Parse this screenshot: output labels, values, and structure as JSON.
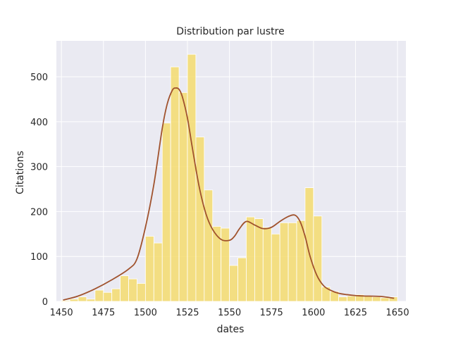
{
  "chart_data": {
    "type": "histogram",
    "title": "Distribution par lustre",
    "xlabel": "dates",
    "ylabel": "Citations",
    "xlim": [
      1447,
      1655
    ],
    "ylim": [
      0,
      580
    ],
    "x_ticks": [
      1450,
      1475,
      1500,
      1525,
      1550,
      1575,
      1600,
      1625,
      1650
    ],
    "y_ticks": [
      0,
      100,
      200,
      300,
      400,
      500
    ],
    "grid": true,
    "background": "#eaeaf2",
    "grid_color": "#ffffff",
    "bar_color": "#f5dc6e",
    "kde_color": "#a0522d",
    "bins": [
      {
        "start": 1450,
        "end": 1455,
        "value": 2
      },
      {
        "start": 1455,
        "end": 1460,
        "value": 5
      },
      {
        "start": 1460,
        "end": 1465,
        "value": 10
      },
      {
        "start": 1465,
        "end": 1470,
        "value": 5
      },
      {
        "start": 1470,
        "end": 1475,
        "value": 25
      },
      {
        "start": 1475,
        "end": 1480,
        "value": 20
      },
      {
        "start": 1480,
        "end": 1485,
        "value": 28
      },
      {
        "start": 1485,
        "end": 1490,
        "value": 57
      },
      {
        "start": 1490,
        "end": 1495,
        "value": 50
      },
      {
        "start": 1495,
        "end": 1500,
        "value": 40
      },
      {
        "start": 1500,
        "end": 1505,
        "value": 145
      },
      {
        "start": 1505,
        "end": 1510,
        "value": 130
      },
      {
        "start": 1510,
        "end": 1515,
        "value": 397
      },
      {
        "start": 1515,
        "end": 1520,
        "value": 522
      },
      {
        "start": 1520,
        "end": 1525,
        "value": 465
      },
      {
        "start": 1525,
        "end": 1530,
        "value": 550
      },
      {
        "start": 1530,
        "end": 1535,
        "value": 366
      },
      {
        "start": 1535,
        "end": 1540,
        "value": 248
      },
      {
        "start": 1540,
        "end": 1545,
        "value": 167
      },
      {
        "start": 1545,
        "end": 1550,
        "value": 163
      },
      {
        "start": 1550,
        "end": 1555,
        "value": 80
      },
      {
        "start": 1555,
        "end": 1560,
        "value": 97
      },
      {
        "start": 1560,
        "end": 1565,
        "value": 188
      },
      {
        "start": 1565,
        "end": 1570,
        "value": 184
      },
      {
        "start": 1570,
        "end": 1575,
        "value": 165
      },
      {
        "start": 1575,
        "end": 1580,
        "value": 150
      },
      {
        "start": 1580,
        "end": 1585,
        "value": 175
      },
      {
        "start": 1585,
        "end": 1590,
        "value": 175
      },
      {
        "start": 1590,
        "end": 1595,
        "value": 180
      },
      {
        "start": 1595,
        "end": 1600,
        "value": 253
      },
      {
        "start": 1600,
        "end": 1605,
        "value": 190
      },
      {
        "start": 1605,
        "end": 1610,
        "value": 32
      },
      {
        "start": 1610,
        "end": 1615,
        "value": 22
      },
      {
        "start": 1615,
        "end": 1620,
        "value": 10
      },
      {
        "start": 1620,
        "end": 1625,
        "value": 12
      },
      {
        "start": 1625,
        "end": 1630,
        "value": 15
      },
      {
        "start": 1630,
        "end": 1635,
        "value": 12
      },
      {
        "start": 1635,
        "end": 1640,
        "value": 10
      },
      {
        "start": 1640,
        "end": 1645,
        "value": 8
      },
      {
        "start": 1645,
        "end": 1650,
        "value": 10
      }
    ],
    "kde": {
      "x": [
        1451,
        1460,
        1470,
        1480,
        1490,
        1495,
        1500,
        1505,
        1510,
        1513,
        1516,
        1518,
        1520,
        1522,
        1525,
        1528,
        1532,
        1536,
        1540,
        1545,
        1550,
        1553,
        1556,
        1560,
        1565,
        1570,
        1575,
        1580,
        1585,
        1589,
        1592,
        1595,
        1598,
        1602,
        1606,
        1610,
        1615,
        1620,
        1625,
        1630,
        1640,
        1648
      ],
      "y": [
        3,
        12,
        28,
        48,
        72,
        95,
        165,
        260,
        385,
        440,
        470,
        475,
        472,
        455,
        408,
        340,
        255,
        195,
        160,
        138,
        136,
        145,
        162,
        178,
        170,
        162,
        165,
        178,
        189,
        192,
        178,
        145,
        100,
        58,
        35,
        25,
        18,
        15,
        13,
        12,
        11,
        7
      ]
    }
  }
}
